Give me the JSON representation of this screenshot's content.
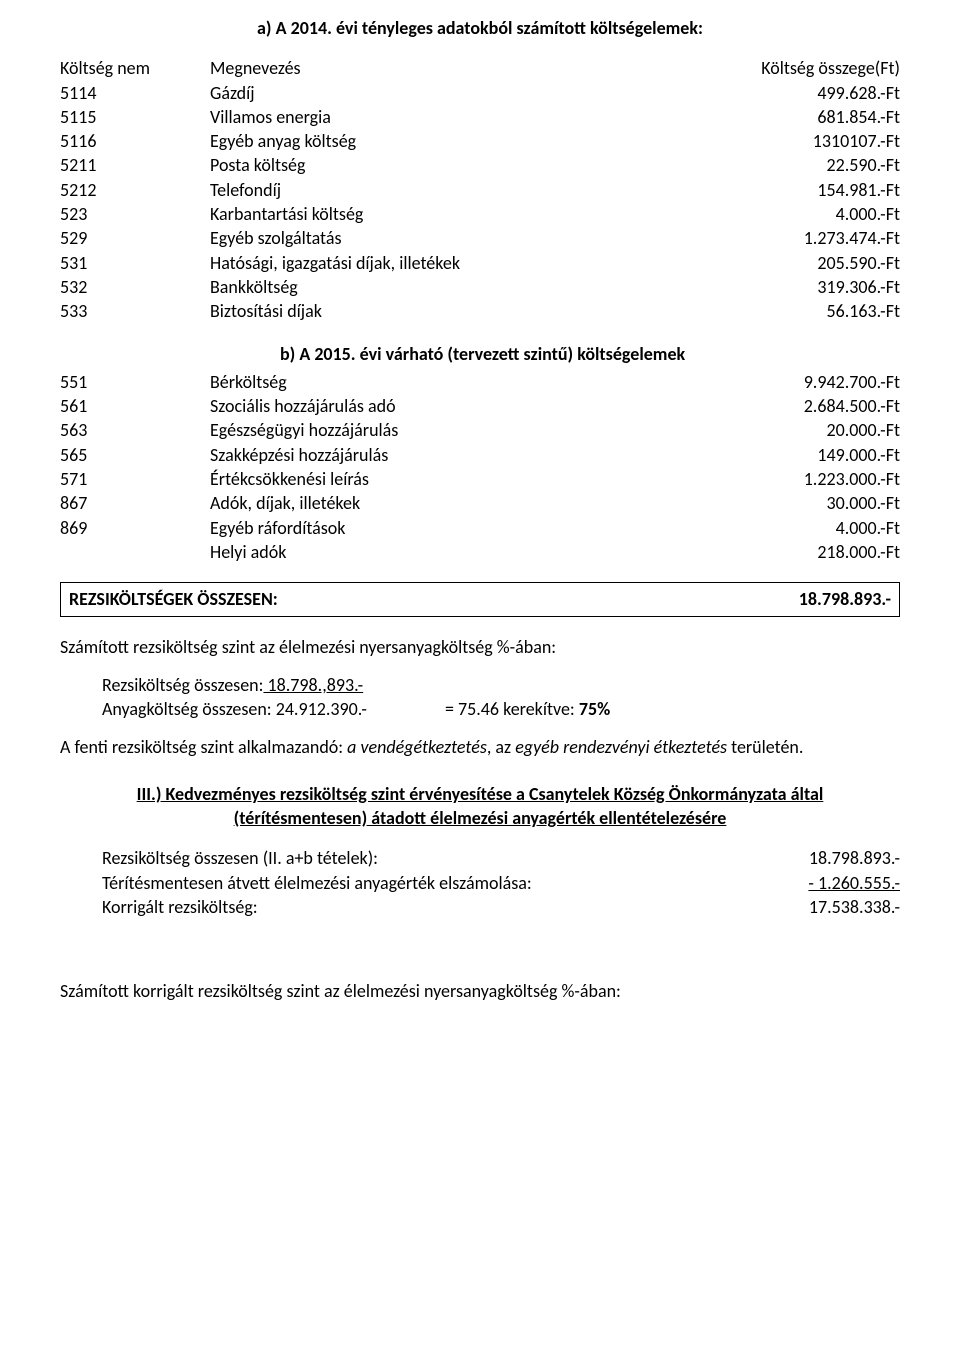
{
  "heading_a": "a) A 2014. évi tényleges adatokból számított költségelemek:",
  "header": {
    "code": "Költség nem",
    "name": "Megnevezés",
    "amount": "Költség összege(Ft)"
  },
  "table_a": [
    {
      "code": "5114",
      "name": "Gázdíj",
      "amount": "499.628.-Ft"
    },
    {
      "code": "5115",
      "name": "Villamos energia",
      "amount": "681.854.-Ft"
    },
    {
      "code": "5116",
      "name": "Egyéb anyag költség",
      "amount": "1310107.-Ft"
    },
    {
      "code": "5211",
      "name": "Posta költség",
      "amount": "22.590.-Ft"
    },
    {
      "code": "5212",
      "name": "Telefondíj",
      "amount": "154.981.-Ft"
    },
    {
      "code": "523",
      "name": "Karbantartási költség",
      "amount": "4.000.-Ft"
    },
    {
      "code": "529",
      "name": "Egyéb szolgáltatás",
      "amount": "1.273.474.-Ft"
    },
    {
      "code": "531",
      "name": "Hatósági, igazgatási díjak, illetékek",
      "amount": "205.590.-Ft"
    },
    {
      "code": "532",
      "name": "Bankköltség",
      "amount": "319.306.-Ft"
    },
    {
      "code": "533",
      "name": "Biztosítási díjak",
      "amount": "56.163.-Ft"
    }
  ],
  "heading_b": "b)  A 2015. évi várható (tervezett szintű) költségelemek",
  "table_b": [
    {
      "code": "551",
      "name": "Bérköltség",
      "amount": "9.942.700.-Ft"
    },
    {
      "code": "561",
      "name": "Szociális hozzájárulás adó",
      "amount": "2.684.500.-Ft"
    },
    {
      "code": "563",
      "name": "Egészségügyi  hozzájárulás",
      "amount": "20.000.-Ft"
    },
    {
      "code": "565",
      "name": "Szakképzési hozzájárulás",
      "amount": "149.000.-Ft"
    },
    {
      "code": "571",
      "name": "Értékcsökkenési leírás",
      "amount": "1.223.000.-Ft"
    },
    {
      "code": "867",
      "name": "Adók, díjak, illetékek",
      "amount": "30.000.-Ft"
    },
    {
      "code": "869",
      "name": "Egyéb ráfordítások",
      "amount": "4.000.-Ft"
    },
    {
      "code": "",
      "name": "Helyi adók",
      "amount": "218.000.-Ft"
    }
  ],
  "summary": {
    "label": "REZSIKÖLTSÉGEK ÖSSZESEN:",
    "value": "18.798.893.-"
  },
  "calc_intro": "Számított rezsiköltség szint az élelmezési nyersanyagköltség %-ában:",
  "calc": {
    "line1_label": "Rezsiköltség összesen:",
    "line1_value": "   18.798.,893.-",
    "line2_label": "Anyagköltség összesen: 24.912.390.-",
    "line2_eq": "= 75.46   kerekítve: ",
    "line2_bold": "75%"
  },
  "apply": {
    "prefix": "A fenti rezsiköltség szint alkalmazandó:   ",
    "i1": "a vendégétkeztetés",
    "mid": ", az ",
    "i2": "egyéb rendezvényi étkeztetés",
    "suffix": " területén."
  },
  "heading_iii_line1": "III.) Kedvezményes rezsiköltség szint érvényesítése a Csanytelek Község Önkormányzata által",
  "heading_iii_line2": "(térítésmentesen) átadott élelmezési anyagérték ellentételezésére",
  "table_c": [
    {
      "label": "Rezsiköltség összesen (II. a+b tételek):",
      "value": "18.798.893.-",
      "underline": false
    },
    {
      "label": "Térítésmentesen átvett élelmezési anyagérték elszámolása:",
      "value": "-  1.260.555.-",
      "underline": true
    },
    {
      "label": "Korrigált rezsiköltség:",
      "value": "17.538.338.-",
      "underline": false
    }
  ],
  "final_line": "Számított korrigált rezsiköltség szint az élelmezési nyersanyagköltség %-ában:"
}
